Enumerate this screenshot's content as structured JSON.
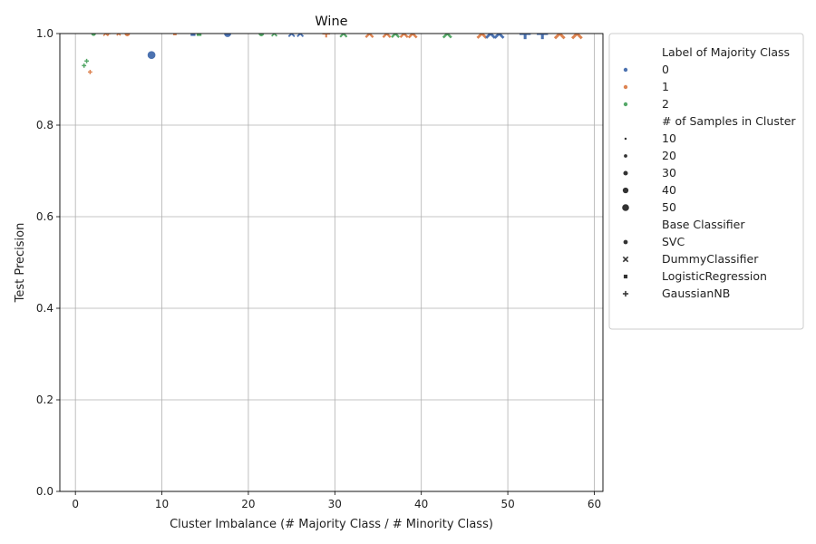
{
  "chart_data": {
    "type": "scatter",
    "title": "Wine",
    "xlabel": "Cluster Imbalance (# Majority Class / # Minority Class)",
    "ylabel": "Test Precision",
    "xlim": [
      -1.8,
      61
    ],
    "ylim": [
      0,
      1
    ],
    "x_ticks": [
      0,
      10,
      20,
      30,
      40,
      50,
      60
    ],
    "y_ticks": [
      0.0,
      0.2,
      0.4,
      0.6,
      0.8,
      1.0
    ],
    "x_tick_labels": [
      "0",
      "10",
      "20",
      "30",
      "40",
      "50",
      "60"
    ],
    "y_tick_labels": [
      "0.0",
      "0.2",
      "0.4",
      "0.6",
      "0.8",
      "1.0"
    ],
    "grid": true,
    "legend_position": "outside-right",
    "hue": {
      "title": "Label of Majority Class",
      "entries": [
        {
          "label": "0",
          "color": "#4c72b0"
        },
        {
          "label": "1",
          "color": "#dd8452"
        },
        {
          "label": "2",
          "color": "#55a868"
        }
      ]
    },
    "size": {
      "title": "# of Samples in Cluster",
      "entries": [
        "10",
        "20",
        "30",
        "40",
        "50"
      ]
    },
    "style": {
      "title": "Base Classifier",
      "entries": [
        {
          "label": "SVC",
          "marker": "circle"
        },
        {
          "label": "DummyClassifier",
          "marker": "x"
        },
        {
          "label": "LogisticRegression",
          "marker": "square"
        },
        {
          "label": "GaussianNB",
          "marker": "plus"
        }
      ]
    },
    "points": [
      {
        "x": 2.1,
        "y": 1.0,
        "hue": "2",
        "classifier": "SVC",
        "n": 20
      },
      {
        "x": 6.0,
        "y": 1.0,
        "hue": "1",
        "classifier": "SVC",
        "n": 25
      },
      {
        "x": 8.8,
        "y": 0.953,
        "hue": "0",
        "classifier": "SVC",
        "n": 40
      },
      {
        "x": 17.6,
        "y": 1.0,
        "hue": "0",
        "classifier": "SVC",
        "n": 35
      },
      {
        "x": 21.5,
        "y": 1.0,
        "hue": "2",
        "classifier": "SVC",
        "n": 25
      },
      {
        "x": 3.5,
        "y": 1.0,
        "hue": "1",
        "classifier": "DummyClassifier",
        "n": 15
      },
      {
        "x": 5.0,
        "y": 1.0,
        "hue": "1",
        "classifier": "DummyClassifier",
        "n": 10
      },
      {
        "x": 23.0,
        "y": 1.0,
        "hue": "2",
        "classifier": "DummyClassifier",
        "n": 20
      },
      {
        "x": 25.0,
        "y": 1.0,
        "hue": "0",
        "classifier": "DummyClassifier",
        "n": 25
      },
      {
        "x": 26.0,
        "y": 1.0,
        "hue": "0",
        "classifier": "DummyClassifier",
        "n": 25
      },
      {
        "x": 31.0,
        "y": 1.0,
        "hue": "2",
        "classifier": "DummyClassifier",
        "n": 30
      },
      {
        "x": 34.0,
        "y": 1.0,
        "hue": "1",
        "classifier": "DummyClassifier",
        "n": 35
      },
      {
        "x": 36.0,
        "y": 1.0,
        "hue": "1",
        "classifier": "DummyClassifier",
        "n": 35
      },
      {
        "x": 37.0,
        "y": 1.0,
        "hue": "2",
        "classifier": "DummyClassifier",
        "n": 35
      },
      {
        "x": 38.0,
        "y": 1.0,
        "hue": "1",
        "classifier": "DummyClassifier",
        "n": 35
      },
      {
        "x": 39.0,
        "y": 1.0,
        "hue": "1",
        "classifier": "DummyClassifier",
        "n": 40
      },
      {
        "x": 43.0,
        "y": 1.0,
        "hue": "2",
        "classifier": "DummyClassifier",
        "n": 40
      },
      {
        "x": 47.0,
        "y": 1.0,
        "hue": "1",
        "classifier": "DummyClassifier",
        "n": 45
      },
      {
        "x": 48.0,
        "y": 1.0,
        "hue": "0",
        "classifier": "DummyClassifier",
        "n": 45
      },
      {
        "x": 49.0,
        "y": 1.0,
        "hue": "0",
        "classifier": "DummyClassifier",
        "n": 45
      },
      {
        "x": 56.0,
        "y": 1.0,
        "hue": "1",
        "classifier": "DummyClassifier",
        "n": 50
      },
      {
        "x": 58.0,
        "y": 1.0,
        "hue": "1",
        "classifier": "DummyClassifier",
        "n": 50
      },
      {
        "x": 11.5,
        "y": 1.0,
        "hue": "1",
        "classifier": "LogisticRegression",
        "n": 15
      },
      {
        "x": 13.6,
        "y": 1.0,
        "hue": "0",
        "classifier": "LogisticRegression",
        "n": 25
      },
      {
        "x": 14.3,
        "y": 1.0,
        "hue": "2",
        "classifier": "LogisticRegression",
        "n": 25
      },
      {
        "x": 1.0,
        "y": 0.93,
        "hue": "2",
        "classifier": "GaussianNB",
        "n": 10
      },
      {
        "x": 1.3,
        "y": 0.94,
        "hue": "2",
        "classifier": "GaussianNB",
        "n": 10
      },
      {
        "x": 1.7,
        "y": 0.916,
        "hue": "1",
        "classifier": "GaussianNB",
        "n": 10
      },
      {
        "x": 3.8,
        "y": 1.0,
        "hue": "1",
        "classifier": "GaussianNB",
        "n": 10
      },
      {
        "x": 29.0,
        "y": 1.0,
        "hue": "1",
        "classifier": "GaussianNB",
        "n": 30
      },
      {
        "x": 52.0,
        "y": 1.0,
        "hue": "0",
        "classifier": "GaussianNB",
        "n": 50
      },
      {
        "x": 54.0,
        "y": 1.0,
        "hue": "0",
        "classifier": "GaussianNB",
        "n": 50
      }
    ]
  }
}
